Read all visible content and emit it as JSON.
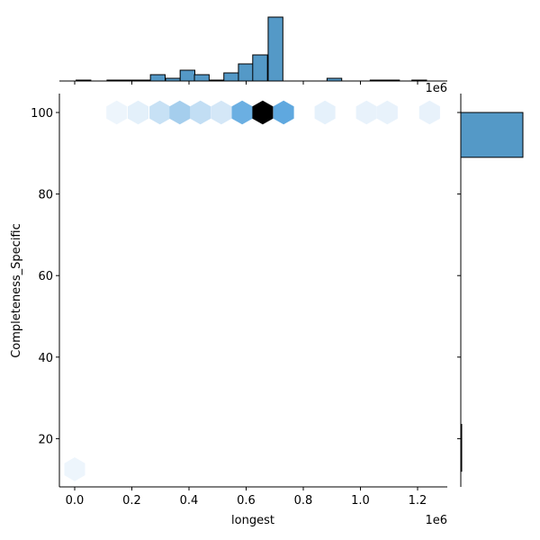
{
  "chart_data": {
    "type": "hexbin-jointplot",
    "title": "",
    "xlabel": "longest",
    "ylabel": "Completeness_Specific",
    "x_offset_label": "1e6",
    "xlim": [
      -0.05,
      1.31
    ],
    "ylim": [
      8,
      104.5
    ],
    "x_ticks": [
      0.0,
      0.2,
      0.4,
      0.6,
      0.8,
      1.0,
      1.2
    ],
    "x_tick_labels": [
      "0.0",
      "0.2",
      "0.4",
      "0.6",
      "0.8",
      "1.0",
      "1.2"
    ],
    "y_ticks": [
      20,
      40,
      60,
      80,
      100
    ],
    "y_tick_labels": [
      "20",
      "40",
      "60",
      "80",
      "100"
    ],
    "grid": false,
    "hexbins": [
      {
        "x": 0.0,
        "y": 12.5,
        "density": 0.03
      },
      {
        "x": 0.147,
        "y": 100,
        "density": 0.03
      },
      {
        "x": 0.222,
        "y": 100,
        "density": 0.07
      },
      {
        "x": 0.298,
        "y": 100,
        "density": 0.18
      },
      {
        "x": 0.368,
        "y": 100,
        "density": 0.32
      },
      {
        "x": 0.44,
        "y": 100,
        "density": 0.2
      },
      {
        "x": 0.513,
        "y": 100,
        "density": 0.13
      },
      {
        "x": 0.586,
        "y": 100,
        "density": 0.55
      },
      {
        "x": 0.658,
        "y": 100,
        "density": 1.0
      },
      {
        "x": 0.731,
        "y": 100,
        "density": 0.6
      },
      {
        "x": 0.876,
        "y": 100,
        "density": 0.06
      },
      {
        "x": 1.021,
        "y": 100,
        "density": 0.05
      },
      {
        "x": 1.094,
        "y": 100,
        "density": 0.05
      },
      {
        "x": 1.242,
        "y": 100,
        "density": 0.05
      }
    ],
    "marginal_x_histogram": {
      "bin_width": 0.0515,
      "bins": [
        {
          "x0": 0.005,
          "count": 1
        },
        {
          "x0": 0.113,
          "count": 1
        },
        {
          "x0": 0.164,
          "count": 1
        },
        {
          "x0": 0.216,
          "count": 1
        },
        {
          "x0": 0.265,
          "count": 7
        },
        {
          "x0": 0.318,
          "count": 3
        },
        {
          "x0": 0.369,
          "count": 12
        },
        {
          "x0": 0.419,
          "count": 7
        },
        {
          "x0": 0.472,
          "count": 1
        },
        {
          "x0": 0.522,
          "count": 9
        },
        {
          "x0": 0.573,
          "count": 19
        },
        {
          "x0": 0.623,
          "count": 29
        },
        {
          "x0": 0.677,
          "count": 71
        },
        {
          "x0": 0.883,
          "count": 3
        },
        {
          "x0": 1.034,
          "count": 1
        },
        {
          "x0": 1.085,
          "count": 1
        },
        {
          "x0": 1.18,
          "count": 1
        }
      ]
    },
    "marginal_y_histogram": {
      "bins": [
        {
          "y0": 89,
          "y1": 100,
          "count": 100
        },
        {
          "y0": 12,
          "y1": 23.5,
          "count": 1
        }
      ]
    },
    "colors": {
      "hex_cmap_light": "#f4f9fe",
      "hex_cmap_mid": "#5fa8df",
      "hex_cmap_max": "#000000",
      "hist_fill": "#5499c7",
      "hist_edge": "#000000"
    }
  }
}
